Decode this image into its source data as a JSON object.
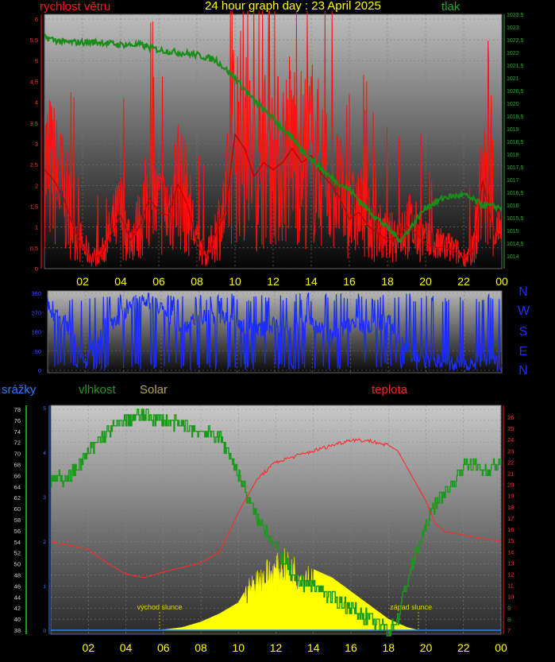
{
  "title": "24 hour graph day : 23 April 2025",
  "wind_label": "rychlost větru",
  "pressure_label": "tlak",
  "rain_label": "srážky",
  "humidity_label": "vlhkost",
  "solar_label": "Solar",
  "temperature_label": "teplota",
  "directions": [
    "N",
    "W",
    "S",
    "E",
    "N"
  ],
  "x_ticks": [
    "02",
    "04",
    "06",
    "08",
    "10",
    "12",
    "14",
    "16",
    "18",
    "20",
    "22",
    "00"
  ],
  "sunrise_label": "východ slunce",
  "sunset_label": "západ slunce",
  "colors": {
    "wind": "#ff1010",
    "pressure": "#1a8c1a",
    "direction": "#1a2cff",
    "humidity": "#1a9a1a",
    "temperature": "#ff2a2a",
    "solar": "#ffff00",
    "rain": "#2f7bff"
  },
  "chart_data": [
    {
      "type": "line",
      "title": "24 hour graph day : 23 April 2025",
      "x_range": [
        0,
        24
      ],
      "x_ticks": [
        "02",
        "04",
        "06",
        "08",
        "10",
        "12",
        "14",
        "16",
        "18",
        "20",
        "22",
        "00"
      ],
      "y_left": {
        "label": "rychlost větru",
        "ylim": [
          0,
          6
        ]
      },
      "y_right": {
        "label": "tlak",
        "ylim": [
          1013.5,
          1023.5
        ]
      },
      "series": [
        {
          "name": "rychlost větru",
          "axis": "left",
          "x": [
            0,
            0.5,
            1,
            1.5,
            2,
            2.5,
            3,
            3.5,
            4,
            4.5,
            5,
            5.5,
            6,
            6.5,
            7,
            7.5,
            8,
            8.5,
            9,
            9.5,
            10,
            10.5,
            11,
            11.5,
            12,
            12.5,
            13,
            13.5,
            14,
            14.5,
            15,
            15.5,
            16,
            16.5,
            17,
            17.5,
            18,
            18.5,
            19,
            19.5,
            20,
            20.5,
            21,
            21.5,
            22,
            22.5,
            23,
            23.5,
            24
          ],
          "values": [
            2.8,
            2.5,
            2.0,
            1.2,
            0.6,
            0.3,
            0.4,
            1.0,
            1.5,
            0.8,
            1.2,
            2.0,
            1.6,
            1.5,
            2.4,
            1.8,
            0.7,
            0.3,
            1.0,
            1.6,
            3.8,
            3.4,
            2.6,
            3.0,
            2.8,
            3.0,
            3.4,
            3.0,
            3.2,
            2.7,
            2.4,
            2.0,
            1.4,
            1.6,
            1.2,
            1.0,
            0.8,
            0.9,
            1.2,
            1.0,
            0.7,
            0.6,
            0.6,
            0.5,
            0.3,
            0.5,
            2.5,
            1.2,
            0.8
          ]
        },
        {
          "name": "tlak",
          "axis": "right",
          "x": [
            0,
            1,
            2,
            3,
            4,
            5,
            6,
            7,
            8,
            9,
            10,
            11,
            12,
            13,
            14,
            15,
            16,
            17,
            18,
            18.7,
            19,
            20,
            21,
            22,
            23,
            24
          ],
          "values": [
            1022.6,
            1022.4,
            1022.4,
            1022.4,
            1022.3,
            1022.3,
            1022.1,
            1022.0,
            1021.9,
            1021.7,
            1021.0,
            1020.1,
            1019.4,
            1018.6,
            1017.8,
            1017.1,
            1016.6,
            1015.8,
            1015.1,
            1014.6,
            1014.9,
            1015.9,
            1016.3,
            1016.4,
            1016.0,
            1015.9
          ]
        }
      ]
    },
    {
      "type": "line",
      "x_range": [
        0,
        24
      ],
      "ylim": [
        0,
        360
      ],
      "y_ticks": [
        "360",
        "270",
        "180",
        "90",
        "0"
      ],
      "series": [
        {
          "x": [
            0,
            1,
            2,
            3,
            4,
            5,
            6,
            7,
            8,
            9,
            10,
            11,
            12,
            13,
            14,
            15,
            16,
            17,
            18,
            19,
            20,
            21,
            22,
            23,
            24
          ],
          "values": [
            270,
            220,
            40,
            200,
            260,
            340,
            300,
            200,
            240,
            250,
            220,
            180,
            220,
            200,
            230,
            150,
            220,
            200,
            240,
            80,
            60,
            40,
            30,
            60,
            20
          ]
        }
      ]
    },
    {
      "type": "line",
      "x_range": [
        0,
        24
      ],
      "y_left": {
        "label": "vlhkost",
        "ylim": [
          38,
          78
        ]
      },
      "y_right": {
        "label": "teplota",
        "ylim": [
          7,
          26
        ]
      },
      "y_rain": {
        "label": "srážky",
        "ylim": [
          0,
          5
        ]
      },
      "series": [
        {
          "name": "vlhkost",
          "axis": "left",
          "x": [
            0,
            1,
            2,
            3,
            4,
            5,
            6,
            7,
            8,
            9,
            9.5,
            10,
            10.5,
            11,
            11.5,
            12,
            12.5,
            13,
            14,
            15,
            16,
            16.5,
            17,
            17.5,
            18,
            18.5,
            19,
            20,
            20.5,
            21,
            21.5,
            22,
            22.5,
            23,
            24
          ],
          "values": [
            65,
            66,
            70,
            74,
            76,
            77,
            76,
            75,
            74,
            73,
            70,
            66,
            62,
            58,
            56,
            53,
            50,
            47,
            46,
            44,
            42,
            41,
            40,
            39,
            38,
            40,
            47,
            57,
            61,
            63,
            65,
            68,
            68,
            67,
            68
          ]
        },
        {
          "name": "teplota",
          "axis": "right",
          "x": [
            0,
            1,
            2,
            3,
            4,
            5,
            6,
            7,
            8,
            9,
            10,
            11,
            12,
            13,
            14,
            15,
            16,
            17,
            18,
            18.5,
            19,
            19.5,
            20,
            20.5,
            21,
            22,
            23,
            24
          ],
          "values": [
            14.9,
            14.6,
            14.2,
            13.0,
            12.0,
            11.7,
            12.2,
            12.6,
            13.0,
            14.0,
            17.5,
            20.5,
            22.0,
            22.5,
            23.0,
            23.5,
            24.0,
            23.9,
            23.5,
            23.0,
            21.5,
            20.0,
            18.5,
            16.5,
            15.8,
            15.5,
            15.2,
            14.9
          ]
        },
        {
          "name": "Solar",
          "axis": "left",
          "x": [
            5.8,
            7,
            8,
            9,
            10,
            10.5,
            11,
            11.5,
            12,
            12.5,
            13,
            13.5,
            14,
            15,
            16,
            17,
            18,
            19,
            19.6
          ],
          "values": [
            38,
            38.5,
            39.5,
            41,
            43,
            46,
            48,
            49.5,
            50,
            51,
            50,
            49,
            49,
            47.5,
            45,
            42.5,
            40,
            38.5,
            38
          ]
        },
        {
          "name": "srážky",
          "axis": "rain",
          "x": [
            0,
            24
          ],
          "values": [
            0,
            0
          ]
        }
      ]
    }
  ]
}
